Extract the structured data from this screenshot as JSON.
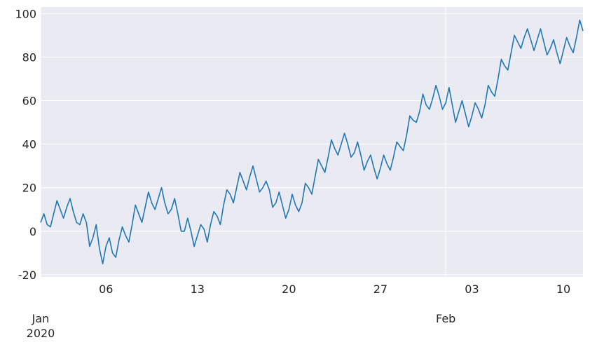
{
  "chart_data": {
    "type": "line",
    "title": "",
    "xlabel": "",
    "ylabel": "",
    "style": {
      "background": "#EAEAF2",
      "grid": true,
      "grid_color": "#FFFFFF",
      "line_color": "#1F77B4"
    },
    "x_range": [
      "2020-01-01",
      "2020-02-11T12:00"
    ],
    "ylim": [
      -21,
      103
    ],
    "yticks": [
      -20,
      0,
      20,
      40,
      60,
      80,
      100
    ],
    "x_major_ticks": [
      {
        "date": "2020-01-01",
        "label": "Jan\n2020"
      },
      {
        "date": "2020-02-01",
        "label": "Feb"
      }
    ],
    "x_minor_ticks": [
      {
        "date": "2020-01-06",
        "label": "06"
      },
      {
        "date": "2020-01-13",
        "label": "13"
      },
      {
        "date": "2020-01-20",
        "label": "20"
      },
      {
        "date": "2020-01-27",
        "label": "27"
      },
      {
        "date": "2020-02-03",
        "label": "03"
      },
      {
        "date": "2020-02-10",
        "label": "10"
      }
    ],
    "series": [
      {
        "points": [
          [
            "2020-01-01T00:00",
            4
          ],
          [
            "2020-01-01T06:00",
            8
          ],
          [
            "2020-01-01T12:00",
            3
          ],
          [
            "2020-01-01T18:00",
            2
          ],
          [
            "2020-01-02T00:00",
            8
          ],
          [
            "2020-01-02T06:00",
            14
          ],
          [
            "2020-01-02T12:00",
            10
          ],
          [
            "2020-01-02T18:00",
            6
          ],
          [
            "2020-01-03T00:00",
            11
          ],
          [
            "2020-01-03T06:00",
            15
          ],
          [
            "2020-01-03T12:00",
            9
          ],
          [
            "2020-01-03T18:00",
            4
          ],
          [
            "2020-01-04T00:00",
            3
          ],
          [
            "2020-01-04T06:00",
            8
          ],
          [
            "2020-01-04T12:00",
            4
          ],
          [
            "2020-01-04T18:00",
            -7
          ],
          [
            "2020-01-05T00:00",
            -3
          ],
          [
            "2020-01-05T06:00",
            3
          ],
          [
            "2020-01-05T12:00",
            -8
          ],
          [
            "2020-01-05T18:00",
            -15
          ],
          [
            "2020-01-06T00:00",
            -7
          ],
          [
            "2020-01-06T06:00",
            -3
          ],
          [
            "2020-01-06T12:00",
            -10
          ],
          [
            "2020-01-06T18:00",
            -12
          ],
          [
            "2020-01-07T00:00",
            -4
          ],
          [
            "2020-01-07T06:00",
            2
          ],
          [
            "2020-01-07T12:00",
            -2
          ],
          [
            "2020-01-07T18:00",
            -5
          ],
          [
            "2020-01-08T00:00",
            3
          ],
          [
            "2020-01-08T06:00",
            12
          ],
          [
            "2020-01-08T12:00",
            8
          ],
          [
            "2020-01-08T18:00",
            4
          ],
          [
            "2020-01-09T00:00",
            11
          ],
          [
            "2020-01-09T06:00",
            18
          ],
          [
            "2020-01-09T12:00",
            13
          ],
          [
            "2020-01-09T18:00",
            10
          ],
          [
            "2020-01-10T00:00",
            15
          ],
          [
            "2020-01-10T06:00",
            20
          ],
          [
            "2020-01-10T12:00",
            13
          ],
          [
            "2020-01-10T18:00",
            8
          ],
          [
            "2020-01-11T00:00",
            10
          ],
          [
            "2020-01-11T06:00",
            15
          ],
          [
            "2020-01-11T12:00",
            8
          ],
          [
            "2020-01-11T18:00",
            0
          ],
          [
            "2020-01-12T00:00",
            0
          ],
          [
            "2020-01-12T06:00",
            6
          ],
          [
            "2020-01-12T12:00",
            0
          ],
          [
            "2020-01-12T18:00",
            -7
          ],
          [
            "2020-01-13T00:00",
            -2
          ],
          [
            "2020-01-13T06:00",
            3
          ],
          [
            "2020-01-13T12:00",
            1
          ],
          [
            "2020-01-13T18:00",
            -5
          ],
          [
            "2020-01-14T00:00",
            3
          ],
          [
            "2020-01-14T06:00",
            9
          ],
          [
            "2020-01-14T12:00",
            7
          ],
          [
            "2020-01-14T18:00",
            3
          ],
          [
            "2020-01-15T00:00",
            12
          ],
          [
            "2020-01-15T06:00",
            19
          ],
          [
            "2020-01-15T12:00",
            17
          ],
          [
            "2020-01-15T18:00",
            13
          ],
          [
            "2020-01-16T00:00",
            20
          ],
          [
            "2020-01-16T06:00",
            27
          ],
          [
            "2020-01-16T12:00",
            23
          ],
          [
            "2020-01-16T18:00",
            19
          ],
          [
            "2020-01-17T00:00",
            25
          ],
          [
            "2020-01-17T06:00",
            30
          ],
          [
            "2020-01-17T12:00",
            24
          ],
          [
            "2020-01-17T18:00",
            18
          ],
          [
            "2020-01-18T00:00",
            20
          ],
          [
            "2020-01-18T06:00",
            23
          ],
          [
            "2020-01-18T12:00",
            19
          ],
          [
            "2020-01-18T18:00",
            11
          ],
          [
            "2020-01-19T00:00",
            13
          ],
          [
            "2020-01-19T06:00",
            18
          ],
          [
            "2020-01-19T12:00",
            12
          ],
          [
            "2020-01-19T18:00",
            6
          ],
          [
            "2020-01-20T00:00",
            10
          ],
          [
            "2020-01-20T06:00",
            17
          ],
          [
            "2020-01-20T12:00",
            12
          ],
          [
            "2020-01-20T18:00",
            9
          ],
          [
            "2020-01-21T00:00",
            13
          ],
          [
            "2020-01-21T06:00",
            22
          ],
          [
            "2020-01-21T12:00",
            20
          ],
          [
            "2020-01-21T18:00",
            17
          ],
          [
            "2020-01-22T00:00",
            25
          ],
          [
            "2020-01-22T06:00",
            33
          ],
          [
            "2020-01-22T12:00",
            30
          ],
          [
            "2020-01-22T18:00",
            27
          ],
          [
            "2020-01-23T00:00",
            34
          ],
          [
            "2020-01-23T06:00",
            42
          ],
          [
            "2020-01-23T12:00",
            38
          ],
          [
            "2020-01-23T18:00",
            35
          ],
          [
            "2020-01-24T00:00",
            40
          ],
          [
            "2020-01-24T06:00",
            45
          ],
          [
            "2020-01-24T12:00",
            40
          ],
          [
            "2020-01-24T18:00",
            34
          ],
          [
            "2020-01-25T00:00",
            36
          ],
          [
            "2020-01-25T06:00",
            41
          ],
          [
            "2020-01-25T12:00",
            35
          ],
          [
            "2020-01-25T18:00",
            28
          ],
          [
            "2020-01-26T00:00",
            32
          ],
          [
            "2020-01-26T06:00",
            35
          ],
          [
            "2020-01-26T12:00",
            29
          ],
          [
            "2020-01-26T18:00",
            24
          ],
          [
            "2020-01-27T00:00",
            29
          ],
          [
            "2020-01-27T06:00",
            35
          ],
          [
            "2020-01-27T12:00",
            31
          ],
          [
            "2020-01-27T18:00",
            28
          ],
          [
            "2020-01-28T00:00",
            34
          ],
          [
            "2020-01-28T06:00",
            41
          ],
          [
            "2020-01-28T12:00",
            39
          ],
          [
            "2020-01-28T18:00",
            37
          ],
          [
            "2020-01-29T00:00",
            44
          ],
          [
            "2020-01-29T06:00",
            53
          ],
          [
            "2020-01-29T12:00",
            51
          ],
          [
            "2020-01-29T18:00",
            50
          ],
          [
            "2020-01-30T00:00",
            55
          ],
          [
            "2020-01-30T06:00",
            63
          ],
          [
            "2020-01-30T12:00",
            58
          ],
          [
            "2020-01-30T18:00",
            56
          ],
          [
            "2020-01-31T00:00",
            61
          ],
          [
            "2020-01-31T06:00",
            67
          ],
          [
            "2020-01-31T12:00",
            62
          ],
          [
            "2020-01-31T18:00",
            56
          ],
          [
            "2020-02-01T00:00",
            59
          ],
          [
            "2020-02-01T06:00",
            66
          ],
          [
            "2020-02-01T12:00",
            58
          ],
          [
            "2020-02-01T18:00",
            50
          ],
          [
            "2020-02-02T00:00",
            55
          ],
          [
            "2020-02-02T06:00",
            60
          ],
          [
            "2020-02-02T12:00",
            54
          ],
          [
            "2020-02-02T18:00",
            48
          ],
          [
            "2020-02-03T00:00",
            53
          ],
          [
            "2020-02-03T06:00",
            59
          ],
          [
            "2020-02-03T12:00",
            56
          ],
          [
            "2020-02-03T18:00",
            52
          ],
          [
            "2020-02-04T00:00",
            58
          ],
          [
            "2020-02-04T06:00",
            67
          ],
          [
            "2020-02-04T12:00",
            64
          ],
          [
            "2020-02-04T18:00",
            62
          ],
          [
            "2020-02-05T00:00",
            70
          ],
          [
            "2020-02-05T06:00",
            79
          ],
          [
            "2020-02-05T12:00",
            76
          ],
          [
            "2020-02-05T18:00",
            74
          ],
          [
            "2020-02-06T00:00",
            82
          ],
          [
            "2020-02-06T06:00",
            90
          ],
          [
            "2020-02-06T12:00",
            87
          ],
          [
            "2020-02-06T18:00",
            84
          ],
          [
            "2020-02-07T00:00",
            89
          ],
          [
            "2020-02-07T06:00",
            93
          ],
          [
            "2020-02-07T12:00",
            88
          ],
          [
            "2020-02-07T18:00",
            83
          ],
          [
            "2020-02-08T00:00",
            88
          ],
          [
            "2020-02-08T06:00",
            93
          ],
          [
            "2020-02-08T12:00",
            87
          ],
          [
            "2020-02-08T18:00",
            81
          ],
          [
            "2020-02-09T00:00",
            84
          ],
          [
            "2020-02-09T06:00",
            88
          ],
          [
            "2020-02-09T12:00",
            82
          ],
          [
            "2020-02-09T18:00",
            77
          ],
          [
            "2020-02-10T00:00",
            83
          ],
          [
            "2020-02-10T06:00",
            89
          ],
          [
            "2020-02-10T12:00",
            85
          ],
          [
            "2020-02-10T18:00",
            82
          ],
          [
            "2020-02-11T00:00",
            89
          ],
          [
            "2020-02-11T06:00",
            97
          ],
          [
            "2020-02-11T12:00",
            92
          ]
        ]
      }
    ]
  }
}
